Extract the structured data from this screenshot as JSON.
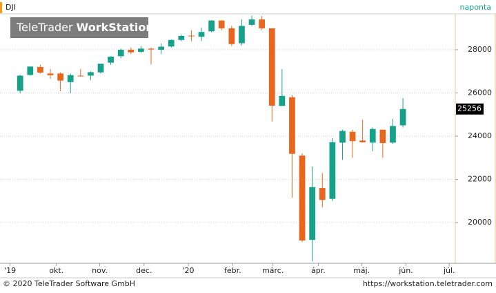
{
  "chart_data": {
    "type": "candlestick",
    "title": "DJI",
    "subtitle": "naponta",
    "watermark_brand": "TeleTrader",
    "watermark_product": "WorkStation",
    "up_color": "#17a08a",
    "down_color": "#e8661e",
    "grid": true,
    "categories": [
      null,
      null,
      null,
      null,
      null,
      null,
      null,
      null,
      null,
      null,
      null,
      null,
      null,
      null,
      null,
      null,
      null,
      null,
      null,
      null,
      null,
      null,
      null,
      null,
      null,
      null,
      null,
      null,
      null,
      null,
      null,
      null,
      null,
      null,
      null,
      null,
      null,
      null,
      null
    ],
    "open": [
      26100,
      26830,
      27200,
      26900,
      26900,
      26500,
      26800,
      26800,
      26950,
      27400,
      27700,
      28000,
      27900,
      28050,
      28000,
      28150,
      28450,
      28650,
      28600,
      28850,
      29350,
      28990,
      28300,
      29150,
      29400,
      28990,
      25400,
      25800,
      23100,
      19200,
      21600,
      21100,
      23700,
      24200,
      23800,
      23700,
      24300,
      23700,
      24500
    ],
    "high": [
      26830,
      27220,
      27300,
      27100,
      26950,
      26900,
      27100,
      27000,
      27350,
      27700,
      28050,
      28100,
      28170,
      28100,
      28290,
      28480,
      28700,
      28900,
      29020,
      29370,
      29370,
      29100,
      29400,
      29570,
      29560,
      28990,
      27100,
      25900,
      23200,
      22600,
      22300,
      23900,
      24300,
      24300,
      24760,
      24400,
      24300,
      24800,
      25760
    ],
    "low": [
      25980,
      26800,
      26900,
      26650,
      26080,
      26000,
      26750,
      26600,
      26900,
      27300,
      27600,
      27800,
      27850,
      27320,
      27800,
      28100,
      28400,
      28400,
      28400,
      28800,
      28900,
      28170,
      28200,
      29100,
      28900,
      24680,
      25400,
      21150,
      19100,
      18210,
      20700,
      21000,
      22900,
      23000,
      23700,
      23300,
      23000,
      23650,
      24400
    ],
    "close": [
      26800,
      27220,
      26940,
      26820,
      26570,
      26820,
      26770,
      26960,
      27350,
      27680,
      28000,
      27880,
      28050,
      28010,
      28140,
      28450,
      28640,
      28630,
      28820,
      29350,
      28990,
      28260,
      29100,
      29400,
      28990,
      25410,
      25860,
      23180,
      19170,
      21640,
      21050,
      23720,
      24240,
      23770,
      23720,
      24330,
      23680,
      24470,
      25256
    ],
    "xlim": [
      -2,
      43.2
    ],
    "xticks": [
      {
        "value": -1,
        "label": "'19"
      },
      {
        "value": 3.6,
        "label": "okt."
      },
      {
        "value": 7.9,
        "label": "nov."
      },
      {
        "value": 12.3,
        "label": "dec."
      },
      {
        "value": 16.7,
        "label": "'20"
      },
      {
        "value": 21.1,
        "label": "febr."
      },
      {
        "value": 25.1,
        "label": "márc."
      },
      {
        "value": 29.6,
        "label": "ápr."
      },
      {
        "value": 33.9,
        "label": "máj."
      },
      {
        "value": 38.3,
        "label": "jún."
      },
      {
        "value": 42.6,
        "label": "júl."
      }
    ],
    "ylim": [
      18150,
      29660
    ],
    "yticks": [
      20000,
      22000,
      24000,
      26000,
      28000
    ]
  },
  "footer": {
    "copyright": "© 2020 TeleTrader Software GmbH",
    "url": "https://workstation.teletrader.com"
  }
}
